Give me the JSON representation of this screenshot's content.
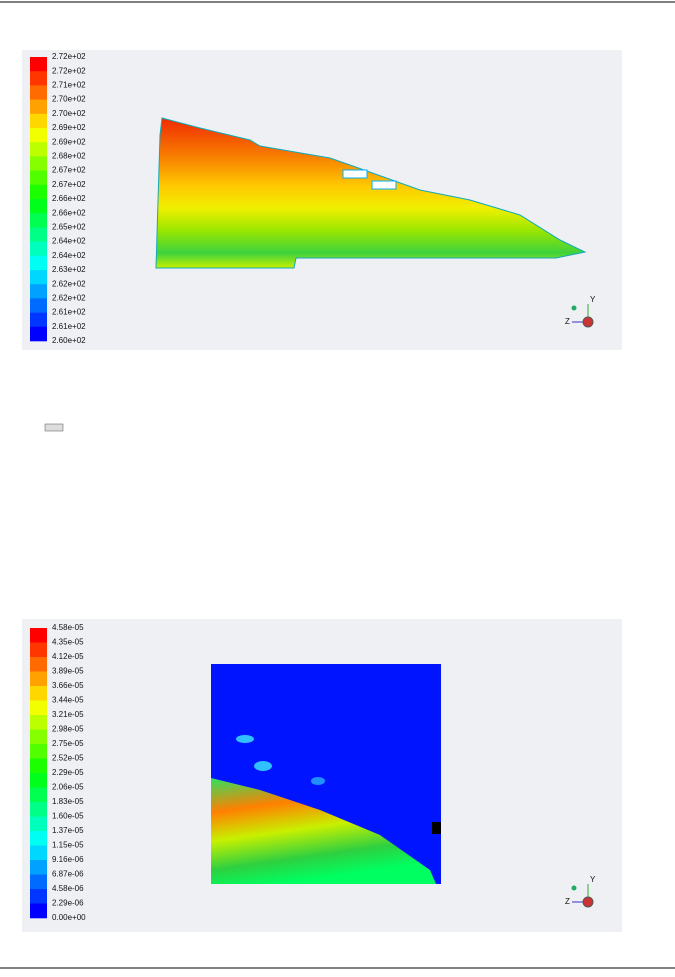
{
  "figures": [
    {
      "legend": {
        "labels": [
          "2.72e+02",
          "2.72e+02",
          "2.71e+02",
          "2.70e+02",
          "2.70e+02",
          "2.69e+02",
          "2.69e+02",
          "2.68e+02",
          "2.67e+02",
          "2.67e+02",
          "2.66e+02",
          "2.66e+02",
          "2.65e+02",
          "2.64e+02",
          "2.64e+02",
          "2.63e+02",
          "2.62e+02",
          "2.62e+02",
          "2.61e+02",
          "2.61e+02",
          "2.60e+02"
        ]
      },
      "axes": [
        "Y",
        "Z"
      ]
    },
    {
      "legend": {
        "labels": [
          "4.58e-05",
          "4.35e-05",
          "4.12e-05",
          "3.89e-05",
          "3.66e-05",
          "3.44e-05",
          "3.21e-05",
          "2.98e-05",
          "2.75e-05",
          "2.52e-05",
          "2.29e-05",
          "2.06e-05",
          "1.83e-05",
          "1.60e-05",
          "1.37e-05",
          "1.15e-05",
          "9.16e-06",
          "6.87e-06",
          "4.58e-06",
          "2.29e-06",
          "0.00e+00"
        ]
      },
      "axes": [
        "Y",
        "Z"
      ]
    }
  ]
}
